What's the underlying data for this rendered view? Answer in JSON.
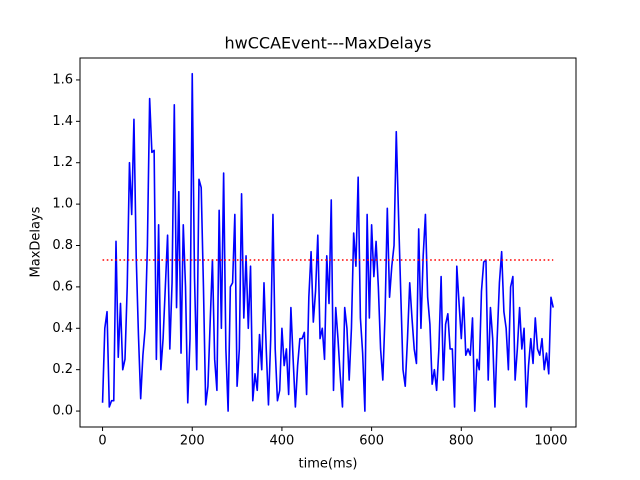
{
  "chart_data": {
    "type": "line",
    "title": "hwCCAEvent---MaxDelays",
    "x_label": "time(ms)",
    "y_label": "MaxDelays",
    "xlim": [
      -50.3,
      1055.8
    ],
    "ylim": [
      -0.077,
      1.706
    ],
    "xticks": [
      0,
      200,
      400,
      600,
      800,
      1000
    ],
    "yticks": [
      {
        "value": 0,
        "label": "0.0"
      },
      0.2,
      0.4,
      0.6,
      0.8,
      {
        "value": 1,
        "label": "1.0"
      },
      1.2,
      1.4,
      1.6
    ],
    "threshold": {
      "value": 0.73,
      "xmin": 0,
      "xmax": 1005,
      "color": "#ff0000"
    },
    "x": [
      0,
      5,
      10,
      15,
      20,
      25,
      30,
      35,
      40,
      45,
      50,
      55,
      60,
      65,
      70,
      75,
      80,
      85,
      90,
      95,
      100,
      105,
      110,
      115,
      120,
      125,
      130,
      135,
      140,
      145,
      150,
      155,
      160,
      165,
      170,
      175,
      180,
      185,
      190,
      195,
      200,
      205,
      210,
      215,
      220,
      225,
      230,
      235,
      240,
      245,
      250,
      255,
      260,
      265,
      270,
      275,
      280,
      285,
      290,
      295,
      300,
      305,
      310,
      315,
      320,
      325,
      330,
      335,
      340,
      345,
      350,
      355,
      360,
      365,
      370,
      375,
      380,
      385,
      390,
      395,
      400,
      405,
      410,
      415,
      420,
      425,
      430,
      435,
      440,
      445,
      450,
      455,
      460,
      465,
      470,
      475,
      480,
      485,
      490,
      495,
      500,
      505,
      510,
      515,
      520,
      525,
      530,
      535,
      540,
      545,
      550,
      555,
      560,
      565,
      570,
      575,
      580,
      585,
      590,
      595,
      600,
      605,
      610,
      615,
      620,
      625,
      630,
      635,
      640,
      645,
      650,
      655,
      660,
      665,
      670,
      675,
      680,
      685,
      690,
      695,
      700,
      705,
      710,
      715,
      720,
      725,
      730,
      735,
      740,
      745,
      750,
      755,
      760,
      765,
      770,
      775,
      780,
      785,
      790,
      795,
      800,
      805,
      810,
      815,
      820,
      825,
      830,
      835,
      840,
      845,
      850,
      855,
      860,
      865,
      870,
      875,
      880,
      885,
      890,
      895,
      900,
      905,
      910,
      915,
      920,
      925,
      930,
      935,
      940,
      945,
      950,
      955,
      960,
      965,
      970,
      975,
      980,
      985,
      990,
      995,
      1000,
      1005
    ],
    "series": [
      {
        "color": "#0000ff",
        "values": [
          0.04,
          0.4,
          0.48,
          0.02,
          0.05,
          0.05,
          0.82,
          0.26,
          0.52,
          0.2,
          0.25,
          0.6,
          1.2,
          0.95,
          1.41,
          0.75,
          0.37,
          0.06,
          0.27,
          0.4,
          0.8,
          1.51,
          1.25,
          1.26,
          0.25,
          0.9,
          0.2,
          0.35,
          0.6,
          0.85,
          0.3,
          0.62,
          1.48,
          0.5,
          1.06,
          0.28,
          0.9,
          0.6,
          0.04,
          0.35,
          1.63,
          0.65,
          0.2,
          1.12,
          1.08,
          0.6,
          0.03,
          0.12,
          0.43,
          0.73,
          0.25,
          0.1,
          0.97,
          0.4,
          1.15,
          0.3,
          0.0,
          0.6,
          0.62,
          0.95,
          0.12,
          0.3,
          1.05,
          0.45,
          0.75,
          0.4,
          0.7,
          0.05,
          0.18,
          0.1,
          0.37,
          0.2,
          0.62,
          0.3,
          0.03,
          0.35,
          0.95,
          0.3,
          0.05,
          0.1,
          0.4,
          0.22,
          0.3,
          0.08,
          0.5,
          0.25,
          0.02,
          0.22,
          0.35,
          0.35,
          0.38,
          0.08,
          0.55,
          0.77,
          0.43,
          0.58,
          0.85,
          0.35,
          0.4,
          0.25,
          0.75,
          0.52,
          1.02,
          0.1,
          0.5,
          0.35,
          0.17,
          0.02,
          0.5,
          0.4,
          0.15,
          0.4,
          0.86,
          0.7,
          1.13,
          0.45,
          0.28,
          0.0,
          0.95,
          0.45,
          0.9,
          0.65,
          0.82,
          0.6,
          0.3,
          0.15,
          0.47,
          0.98,
          0.55,
          0.7,
          0.8,
          1.35,
          0.95,
          0.57,
          0.2,
          0.12,
          0.35,
          0.62,
          0.45,
          0.3,
          0.23,
          0.88,
          0.4,
          0.75,
          0.95,
          0.55,
          0.42,
          0.13,
          0.2,
          0.1,
          0.3,
          0.65,
          0.15,
          0.42,
          0.47,
          0.3,
          0.3,
          0.02,
          0.7,
          0.52,
          0.35,
          0.55,
          0.27,
          0.3,
          0.27,
          0.45,
          0.0,
          0.25,
          0.2,
          0.58,
          0.72,
          0.73,
          0.15,
          0.5,
          0.35,
          0.02,
          0.35,
          0.62,
          0.77,
          0.48,
          0.4,
          0.2,
          0.6,
          0.65,
          0.15,
          0.3,
          0.5,
          0.3,
          0.4,
          0.02,
          0.22,
          0.35,
          0.23,
          0.45,
          0.3,
          0.27,
          0.35,
          0.2,
          0.28,
          0.18,
          0.55,
          0.5
        ]
      }
    ]
  }
}
